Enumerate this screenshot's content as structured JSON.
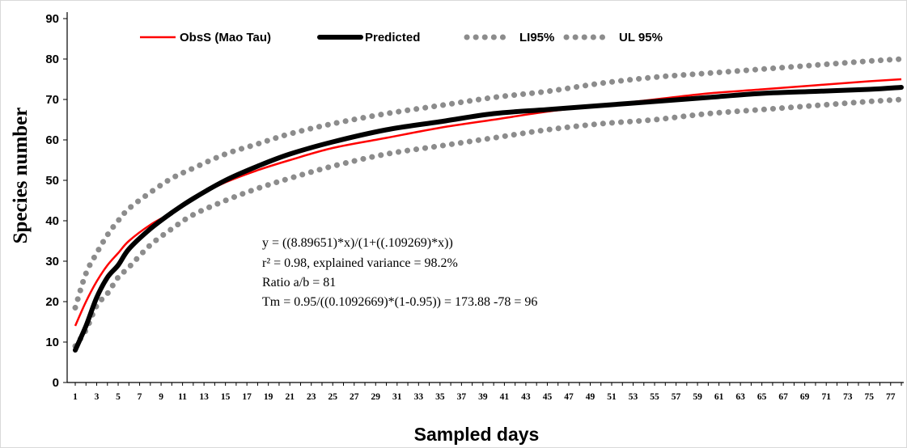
{
  "chart_data": {
    "type": "line",
    "title": "",
    "xlabel": "Sampled days",
    "ylabel": "Species number",
    "xlim": [
      1,
      78
    ],
    "ylim": [
      0,
      90
    ],
    "y_ticks": [
      0,
      10,
      20,
      30,
      40,
      50,
      60,
      70,
      80,
      90
    ],
    "x_tick_labels": [
      "1",
      "3",
      "5",
      "7",
      "9",
      "11",
      "13",
      "15",
      "17",
      "19",
      "21",
      "23",
      "25",
      "27",
      "29",
      "31",
      "33",
      "35",
      "37",
      "39",
      "41",
      "43",
      "45",
      "47",
      "49",
      "51",
      "53",
      "55",
      "57",
      "59",
      "61",
      "63",
      "65",
      "67",
      "69",
      "71",
      "73",
      "75",
      "77"
    ],
    "grid": false,
    "legend_position": "top",
    "x": [
      1,
      2,
      3,
      4,
      5,
      6,
      8,
      10,
      12,
      15,
      18,
      21,
      25,
      30,
      35,
      40,
      45,
      50,
      55,
      60,
      65,
      70,
      75,
      78
    ],
    "series": [
      {
        "name": "ObsS (Mao Tau)",
        "color": "#ff0000",
        "style": "solid",
        "values": [
          14,
          20,
          25,
          29,
          32,
          35,
          39,
          42,
          45.5,
          49.5,
          52.5,
          55,
          58,
          60.5,
          63,
          65,
          67,
          68.5,
          70,
          71.5,
          72.5,
          73.5,
          74.5,
          75
        ]
      },
      {
        "name": "Predicted",
        "color": "#000000",
        "style": "solid-thick",
        "values": [
          8,
          14,
          21,
          26,
          29,
          33,
          38,
          42,
          45.5,
          50,
          53.5,
          56.5,
          59.5,
          62.5,
          64.5,
          66.5,
          67.5,
          68.5,
          69.5,
          70.5,
          71.5,
          72,
          72.5,
          73
        ]
      },
      {
        "name": "LI95%",
        "color": "#8c8c8c",
        "style": "dotted",
        "values": [
          9,
          13,
          19,
          22,
          26,
          28.5,
          34,
          38,
          41.5,
          45,
          48,
          50.5,
          53.5,
          56.5,
          58.5,
          60.5,
          62.5,
          64,
          65,
          66.5,
          67.5,
          68.5,
          69.5,
          70
        ]
      },
      {
        "name": "UL 95%",
        "color": "#8c8c8c",
        "style": "dotted",
        "values": [
          18.5,
          27,
          32,
          36.5,
          40,
          43,
          47,
          50.5,
          53,
          56.5,
          59,
          61.5,
          64,
          66.5,
          68.5,
          70.5,
          72,
          74,
          75.5,
          76.5,
          77.5,
          78.5,
          79.5,
          80
        ]
      }
    ],
    "annotations": [
      "y = ((8.89651)*x)/(1+((.109269)*x))",
      "r² = 0.98, explained  variance  = 98.2%",
      "Ratio  a/b = 81",
      "Tm = 0.95/((0.1092669)*(1-0.95))  = 173.88 -78 = 96"
    ]
  }
}
